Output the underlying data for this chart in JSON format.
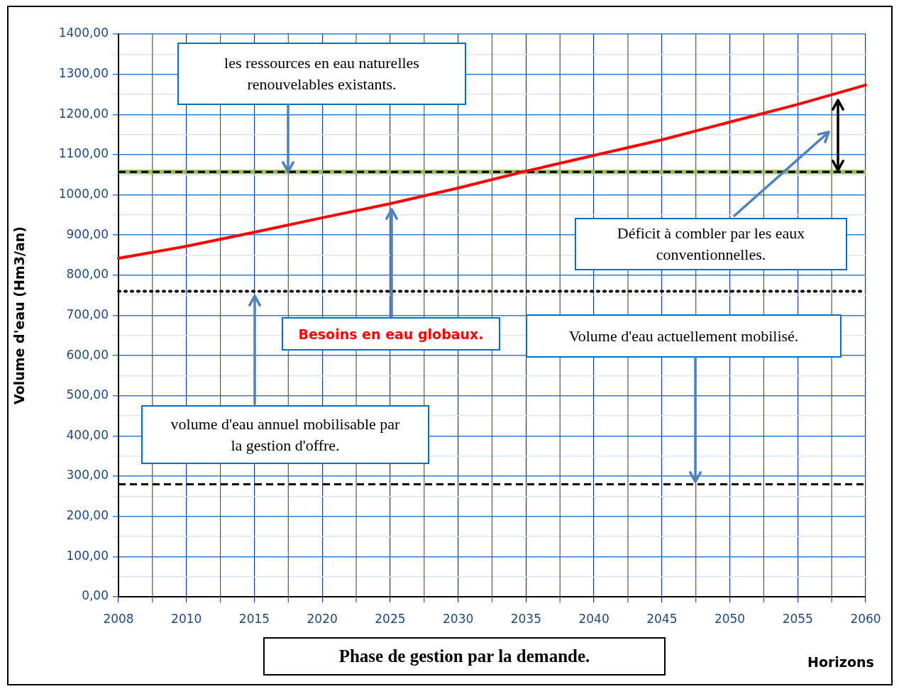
{
  "chart_data": {
    "type": "line",
    "categories": [
      "2008",
      "2010",
      "2015",
      "2020",
      "2025",
      "2030",
      "2035",
      "2040",
      "2045",
      "2050",
      "2055",
      "2060"
    ],
    "series": [
      {
        "name": "Besoins en eau globaux.",
        "color": "#ff0000",
        "values": [
          842,
          872,
          907,
          943,
          978,
          1017,
          1059,
          1098,
          1137,
          1181,
          1225,
          1273
        ]
      }
    ],
    "ylim": [
      0,
      1400
    ],
    "yticks": [
      {
        "value": 0,
        "label": "0,00"
      },
      {
        "value": 50,
        "label": null
      },
      {
        "value": 100,
        "label": "100,00"
      },
      {
        "value": 150,
        "label": null
      },
      {
        "value": 200,
        "label": "200,00"
      },
      {
        "value": 250,
        "label": null
      },
      {
        "value": 300,
        "label": "300,00"
      },
      {
        "value": 350,
        "label": null
      },
      {
        "value": 400,
        "label": "400,00"
      },
      {
        "value": 450,
        "label": null
      },
      {
        "value": 500,
        "label": "500,00"
      },
      {
        "value": 550,
        "label": null
      },
      {
        "value": 600,
        "label": "600,00"
      },
      {
        "value": 650,
        "label": null
      },
      {
        "value": 700,
        "label": "700,00"
      },
      {
        "value": 750,
        "label": null
      },
      {
        "value": 800,
        "label": "800,00"
      },
      {
        "value": 850,
        "label": null
      },
      {
        "value": 900,
        "label": "900,00"
      },
      {
        "value": 950,
        "label": null
      },
      {
        "value": 1000,
        "label": "1000,00"
      },
      {
        "value": 1050,
        "label": null
      },
      {
        "value": 1100,
        "label": "1100,00"
      },
      {
        "value": 1150,
        "label": null
      },
      {
        "value": 1200,
        "label": "1200,00"
      },
      {
        "value": 1250,
        "label": null
      },
      {
        "value": 1300,
        "label": "1300,00"
      },
      {
        "value": 1350,
        "label": null
      },
      {
        "value": 1400,
        "label": "1400,00"
      }
    ],
    "ylabel": "Volume d'eau (Hm3/an)",
    "xlabel": "Horizons",
    "ref_lines": [
      {
        "axis": "y",
        "value": 1057,
        "label": "les ressources en eau naturelles renouvelables existants.",
        "color": "#9bbb59",
        "line_style": "solid"
      },
      {
        "axis": "y",
        "value": 1057,
        "label": null,
        "color": "#000000",
        "line_style": "dashed"
      },
      {
        "axis": "y",
        "value": 760,
        "label": "volume d'eau annuel mobilisable par la gestion d'offre.",
        "color": "#000000",
        "line_style": "dotted"
      },
      {
        "axis": "y",
        "value": 280,
        "label": "Volume d'eau actuellement mobilisé.",
        "color": "#000000",
        "line_style": "dashed"
      }
    ],
    "annotations": [
      "Déficit à combler par les eaux conventionnelles.",
      "Phase de gestion par la demande."
    ],
    "grid": true,
    "legend": false,
    "marker": "none"
  }
}
